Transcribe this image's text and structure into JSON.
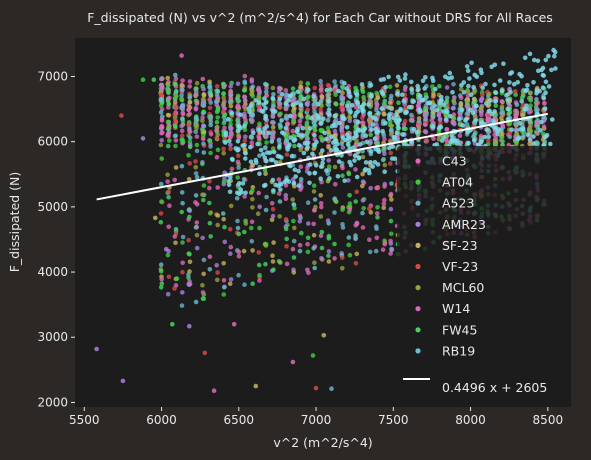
{
  "chart_data": {
    "type": "scatter",
    "title": "F_dissipated (N) vs v^2 (m^2/s^4) for Each Car without DRS for All Races",
    "xlabel": "v^2 (m^2/s^4)",
    "ylabel": "F_dissipated (N)",
    "xlim": [
      5440,
      8650
    ],
    "ylim": [
      1930,
      7590
    ],
    "xticks": [
      5500,
      6000,
      6500,
      7000,
      7500,
      8000,
      8500
    ],
    "yticks": [
      2000,
      3000,
      4000,
      5000,
      6000,
      7000
    ],
    "grid": false,
    "legend_position": "bottom-right",
    "series": [
      {
        "name": "C43",
        "color": "#e066b8"
      },
      {
        "name": "AT04",
        "color": "#3ec93e"
      },
      {
        "name": "A523",
        "color": "#6ab0c8"
      },
      {
        "name": "AMR23",
        "color": "#a97ee0"
      },
      {
        "name": "SF-23",
        "color": "#c8b25a"
      },
      {
        "name": "VF-23",
        "color": "#d24a4a"
      },
      {
        "name": "MCL60",
        "color": "#9aa03c"
      },
      {
        "name": "W14",
        "color": "#d86ab8"
      },
      {
        "name": "FW45",
        "color": "#45d460"
      },
      {
        "name": "RB19",
        "color": "#66c2cc"
      }
    ],
    "fit_line": {
      "label": "0.4496 x + 2605",
      "slope": 0.4496,
      "intercept": 2605,
      "x_range": [
        5580,
        8500
      ],
      "color": "#ffffff"
    },
    "overlay_color": "#7fd8e8",
    "outliers": [
      {
        "x": 5580,
        "y": 2820,
        "s": 3
      },
      {
        "x": 5750,
        "y": 2330,
        "s": 3
      },
      {
        "x": 6340,
        "y": 2180,
        "s": 0
      },
      {
        "x": 6610,
        "y": 2250,
        "s": 4
      },
      {
        "x": 7000,
        "y": 2220,
        "s": 5
      },
      {
        "x": 7100,
        "y": 2210,
        "s": 2
      },
      {
        "x": 6850,
        "y": 2620,
        "s": 7
      },
      {
        "x": 6980,
        "y": 2720,
        "s": 1
      },
      {
        "x": 6280,
        "y": 2760,
        "s": 5
      },
      {
        "x": 6180,
        "y": 3170,
        "s": 3
      },
      {
        "x": 6070,
        "y": 3200,
        "s": 8
      },
      {
        "x": 7050,
        "y": 3030,
        "s": 4
      },
      {
        "x": 6470,
        "y": 3200,
        "s": 0
      },
      {
        "x": 5880,
        "y": 6950,
        "s": 1
      },
      {
        "x": 5950,
        "y": 6950,
        "s": 8
      },
      {
        "x": 5740,
        "y": 6400,
        "s": 5
      },
      {
        "x": 5880,
        "y": 6050,
        "s": 3
      },
      {
        "x": 6130,
        "y": 7320,
        "s": 0
      },
      {
        "x": 8380,
        "y": 4800,
        "s": 7
      },
      {
        "x": 8250,
        "y": 4860,
        "s": 1
      },
      {
        "x": 7900,
        "y": 4950,
        "s": 9
      },
      {
        "x": 6030,
        "y": 4350,
        "s": 3
      },
      {
        "x": 6100,
        "y": 3900,
        "s": 1
      },
      {
        "x": 5960,
        "y": 4830,
        "s": 4
      }
    ]
  }
}
